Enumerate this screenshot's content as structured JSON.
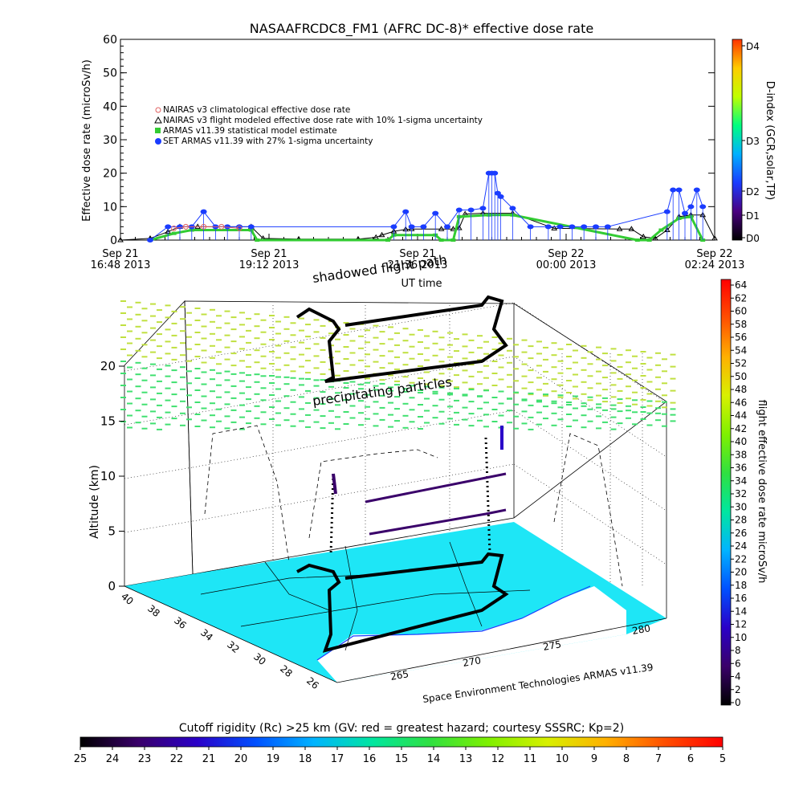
{
  "chart_data": [
    {
      "type": "line",
      "title": "NASAAFRCDC8_FM1 (AFRC DC-8)* effective dose rate",
      "ylabel": "Effective dose rate (microSv/h)",
      "xlabel": "UT time",
      "ylim": [
        0,
        60
      ],
      "yticks": [
        "0",
        "10",
        "20",
        "30",
        "40",
        "50",
        "60"
      ],
      "xticks": [
        {
          "line1": "Sep 21",
          "line2": "16:48 2013"
        },
        {
          "line1": "Sep 21",
          "line2": "19:12 2013"
        },
        {
          "line1": "Sep 21",
          "line2": "21:36 2013"
        },
        {
          "line1": "Sep 22",
          "line2": "00:00 2013"
        },
        {
          "line1": "Sep 22",
          "line2": "02:24 2013"
        }
      ],
      "x_unit": "hours since Sep 21 16:48 UT",
      "legend_position": "upper-left",
      "legend": [
        {
          "label": "NAIRAS v3 climatological effective dose rate",
          "color": "#e06060",
          "marker": "circle"
        },
        {
          "label": "NAIRAS v3 flight modeled effective dose rate with 10% 1-sigma uncertainty",
          "color": "#000000",
          "marker": "triangle"
        },
        {
          "label": "ARMAS v11.39 statistical model estimate",
          "color": "#33cc33",
          "marker": "square"
        },
        {
          "label": "SET ARMAS v11.39 with 27% 1-sigma uncertainty",
          "color": "#1a3cff",
          "marker": "dot"
        }
      ],
      "series": [
        {
          "name": "NAIRAS v3 flight modeled effective dose rate with 10% 1-sigma uncertainty",
          "color": "#000000",
          "x": [
            0.0,
            0.5,
            0.8,
            1.0,
            1.3,
            2.2,
            2.4,
            3.0,
            4.0,
            4.3,
            4.4,
            4.6,
            4.8,
            4.9,
            5.4,
            5.6,
            5.7,
            5.8,
            6.1,
            6.6,
            7.3,
            8.4,
            8.6,
            8.8,
            9.0,
            9.2,
            9.4,
            9.6,
            9.8,
            10.0
          ],
          "y": [
            0.0,
            0.5,
            2.5,
            4.0,
            4.0,
            4.0,
            0.5,
            0.3,
            0.3,
            0.8,
            1.5,
            2.6,
            3.2,
            3.3,
            3.3,
            3.3,
            3.6,
            7.8,
            8.0,
            8.0,
            3.5,
            3.3,
            3.3,
            1.0,
            0.5,
            3.0,
            7.0,
            7.5,
            7.5,
            0.5
          ]
        },
        {
          "name": "ARMAS v11.39 statistical model estimate",
          "color": "#33cc33",
          "x": [
            0.5,
            0.9,
            1.2,
            2.2,
            2.3,
            4.5,
            4.6,
            5.3,
            5.4,
            5.6,
            5.7,
            6.2,
            6.6,
            8.7,
            8.9,
            9.1,
            9.4,
            9.6,
            9.8
          ],
          "y": [
            0.0,
            2.0,
            3.0,
            3.0,
            0.0,
            0.0,
            1.5,
            1.5,
            0.0,
            0.0,
            7.0,
            7.5,
            7.5,
            0.0,
            0.0,
            3.0,
            6.5,
            7.0,
            0.0
          ]
        },
        {
          "name": "SET ARMAS v11.39 with 27% 1-sigma uncertainty",
          "color": "#1a3cff",
          "x": [
            0.5,
            0.8,
            1.0,
            1.2,
            1.4,
            1.6,
            1.8,
            2.0,
            2.2,
            4.6,
            4.8,
            4.9,
            5.1,
            5.3,
            5.5,
            5.7,
            5.9,
            6.1,
            6.2,
            6.25,
            6.3,
            6.35,
            6.4,
            6.6,
            6.9,
            7.2,
            7.4,
            7.6,
            7.8,
            8.0,
            8.2,
            9.2,
            9.3,
            9.4,
            9.5,
            9.6,
            9.7,
            9.8
          ],
          "y": [
            0.0,
            4.0,
            4.0,
            4.0,
            8.5,
            4.0,
            4.0,
            4.0,
            4.0,
            4.0,
            8.5,
            4.0,
            4.0,
            8.0,
            4.0,
            9.0,
            9.0,
            9.5,
            20.0,
            20.0,
            20.0,
            14.0,
            13.0,
            9.5,
            4.0,
            4.0,
            4.0,
            4.0,
            4.0,
            4.0,
            4.0,
            8.5,
            15.0,
            15.0,
            8.0,
            10.0,
            15.0,
            10.0
          ]
        },
        {
          "name": "NAIRAS v3 climatological effective dose rate",
          "color": "#e06060",
          "x": [
            0.9,
            1.1,
            1.4,
            1.7,
            2.0
          ],
          "y": [
            3.5,
            4.0,
            4.0,
            4.0,
            3.5
          ]
        }
      ],
      "right_colorbar": {
        "label": "D-index (GCR,solar,TP)",
        "ticks": [
          "D4",
          "D3",
          "D2",
          "D1",
          "D0"
        ],
        "colors": [
          "#000000",
          "#4a0080",
          "#1a3cff",
          "#00b0ff",
          "#00ff80",
          "#c0ff00",
          "#ffcc00",
          "#ff3300"
        ]
      }
    },
    {
      "type": "heatmap",
      "title": "flight effective dose rate microSv/h",
      "zlabel": "Altitude (km)",
      "zticks": [
        "0",
        "5",
        "10",
        "15",
        "20"
      ],
      "lat_ticks": [
        "40",
        "38",
        "36",
        "34",
        "32",
        "30",
        "28",
        "26"
      ],
      "lon_ticks": [
        "265",
        "270",
        "275",
        "280"
      ],
      "labels": {
        "shadowed": "shadowed flight path",
        "precip": "precipitating particles",
        "attribution": "Space Environment Technologies ARMAS v11.39"
      },
      "dose_colorbar": {
        "ticks": [
          "0",
          "2",
          "4",
          "6",
          "8",
          "10",
          "12",
          "14",
          "16",
          "18",
          "20",
          "22",
          "24",
          "26",
          "28",
          "30",
          "32",
          "34",
          "36",
          "38",
          "40",
          "42",
          "44",
          "46",
          "48",
          "50",
          "52",
          "54",
          "56",
          "58",
          "60",
          "62",
          "64"
        ],
        "colors": [
          "#000000",
          "#3a006a",
          "#2a00c8",
          "#0050ff",
          "#00b4ff",
          "#00e6a0",
          "#30e040",
          "#80f000",
          "#d8f000",
          "#ffb000",
          "#ff5000",
          "#ff0000"
        ]
      },
      "rigidity_colorbar": {
        "title": "Cutoff rigidity (Rc) >25 km (GV: red = greatest hazard; courtesy SSSRC; Kp=2)",
        "ticks": [
          "25",
          "24",
          "23",
          "22",
          "21",
          "20",
          "19",
          "18",
          "17",
          "16",
          "15",
          "14",
          "13",
          "12",
          "11",
          "10",
          "9",
          "8",
          "7",
          "6",
          "5"
        ],
        "colors": [
          "#000000",
          "#3a006a",
          "#2a00c8",
          "#0050ff",
          "#00b4ff",
          "#00e6a0",
          "#30e040",
          "#80f000",
          "#d8f000",
          "#ffb000",
          "#ff5000",
          "#ff0000"
        ]
      },
      "map_color": "#1ee6f6",
      "precip_top_color": "#c0e040",
      "precip_bottom_color": "#40e070"
    }
  ]
}
